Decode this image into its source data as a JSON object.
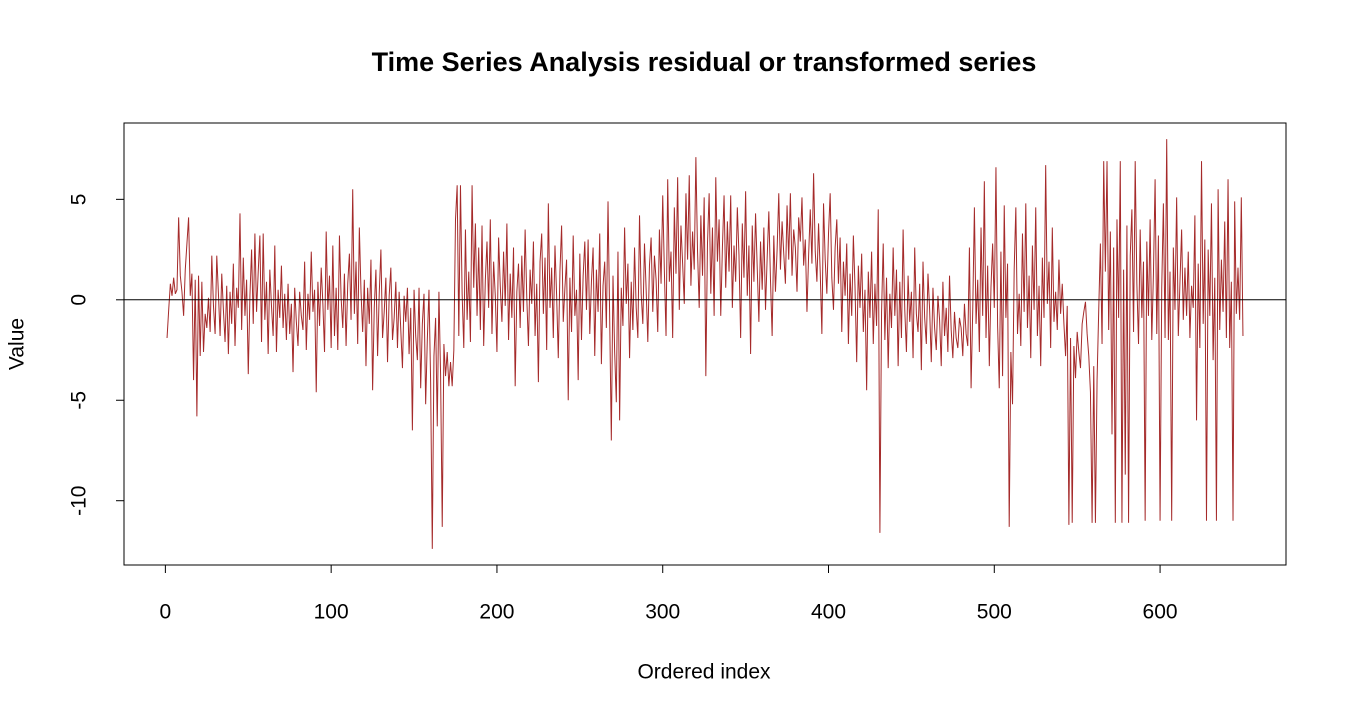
{
  "chart_data": {
    "type": "line",
    "title": "Time Series Analysis residual or transformed series",
    "x_label": "Ordered index",
    "y_label": "Value",
    "color": "#a52a2a",
    "hline": 0,
    "xlim": [
      -24.96,
      675.96
    ],
    "ylim": [
      -13.2,
      8.8
    ],
    "xticks": [
      0,
      100,
      200,
      300,
      400,
      500,
      600
    ],
    "yticks": [
      -10,
      -5,
      0,
      5
    ],
    "values": [
      -1.9,
      -0.5,
      0.8,
      0.2,
      1.1,
      0.3,
      0.5,
      4.1,
      1.2,
      0.4,
      -0.8,
      1.5,
      2.8,
      4.1,
      0.2,
      1.3,
      -4.0,
      1.0,
      -5.8,
      1.2,
      -2.8,
      0.9,
      -2.6,
      -0.7,
      -1.4,
      0.1,
      -1.6,
      2.2,
      -0.3,
      -1.7,
      2.2,
      0.3,
      -1.8,
      1.3,
      -0.5,
      -2.1,
      0.7,
      -2.7,
      0.4,
      -1.2,
      1.8,
      -2.3,
      0.6,
      -0.4,
      4.3,
      -1.5,
      2.1,
      -0.8,
      1.0,
      -3.7,
      0.2,
      2.5,
      -1.2,
      3.3,
      -0.6,
      1.4,
      3.2,
      -2.1,
      3.3,
      -1.0,
      0.9,
      -2.7,
      1.5,
      -0.3,
      -1.8,
      2.7,
      -2.6,
      0.5,
      -0.9,
      1.7,
      -1.4,
      0.3,
      -2.0,
      0.8,
      -1.7,
      -0.2,
      -3.6,
      0.6,
      -1.1,
      -2.3,
      0.4,
      -0.8,
      -1.5,
      1.9,
      -2.5,
      0.3,
      -1.0,
      2.4,
      -0.6,
      0.5,
      -4.6,
      0.9,
      -1.3,
      1.6,
      -0.2,
      -2.6,
      3.4,
      -0.5,
      1.2,
      -2.4,
      2.7,
      -1.8,
      0.6,
      -2.5,
      3.2,
      0.1,
      -1.4,
      1.3,
      -2.3,
      0.8,
      2.3,
      -1.0,
      5.5,
      -0.7,
      1.9,
      -2.2,
      3.6,
      0.4,
      -1.6,
      1.0,
      -3.3,
      0.6,
      -1.2,
      2.0,
      -4.5,
      -0.4,
      1.5,
      -2.8,
      0.3,
      2.5,
      -1.9,
      -0.6,
      1.1,
      -3.1,
      0.2,
      1.6,
      -2.0,
      -0.9,
      0.9,
      -2.4,
      0.4,
      -1.5,
      -3.4,
      0.2,
      -1.1,
      0.6,
      -2.7,
      -0.4,
      -6.5,
      0.5,
      -1.8,
      -3.0,
      0.6,
      -4.4,
      -1.2,
      0.3,
      -5.2,
      -2.0,
      0.5,
      -4.1,
      -12.4,
      -2.8,
      -0.9,
      -6.3,
      0.4,
      -3.7,
      -11.3,
      -2.2,
      -3.8,
      -2.6,
      -4.3,
      -3.1,
      -4.3,
      -2.5,
      4.0,
      5.7,
      -1.8,
      5.7,
      0.3,
      -2.4,
      3.5,
      -1.0,
      1.4,
      -2.1,
      5.7,
      0.6,
      3.8,
      -0.8,
      2.6,
      -1.5,
      3.7,
      -2.3,
      1.0,
      2.9,
      -0.4,
      4.0,
      -1.7,
      1.9,
      0.2,
      -2.6,
      3.1,
      0.7,
      -1.1,
      2.4,
      -0.3,
      3.8,
      -2.0,
      1.3,
      -0.9,
      2.6,
      -4.3,
      0.4,
      1.8,
      -1.4,
      2.2,
      -0.6,
      3.5,
      0.1,
      -2.3,
      1.5,
      -0.2,
      2.9,
      -1.8,
      0.8,
      -4.1,
      1.9,
      3.3,
      -0.7,
      2.1,
      -2.5,
      4.8,
      -0.4,
      1.6,
      -1.9,
      2.7,
      0.2,
      -2.9,
      1.4,
      3.7,
      -1.1,
      0.6,
      2.0,
      -5.0,
      1.1,
      -1.6,
      3.2,
      -0.8,
      0.5,
      -4.0,
      2.3,
      -2.0,
      1.2,
      2.9,
      -0.5,
      3.0,
      -1.7,
      0.9,
      2.6,
      -2.8,
      1.5,
      -0.6,
      3.3,
      -3.2,
      0.7,
      1.9,
      -1.4,
      4.9,
      -0.9,
      -7.0,
      1.2,
      -2.6,
      -5.1,
      2.4,
      -6.0,
      0.6,
      -1.3,
      3.6,
      -0.2,
      1.8,
      -2.9,
      0.9,
      -1.5,
      2.6,
      -0.4,
      -1.9,
      4.2,
      0.3,
      -1.2,
      2.8,
      0.5,
      -2.1,
      1.7,
      3.1,
      -0.6,
      2.2,
      1.0,
      -1.6,
      3.5,
      0.8,
      5.2,
      1.4,
      -1.8,
      6.0,
      0.9,
      2.4,
      -1.9,
      4.6,
      1.3,
      6.1,
      -0.5,
      3.7,
      1.8,
      -0.2,
      5.3,
      2.0,
      6.2,
      0.7,
      3.4,
      1.5,
      7.1,
      2.4,
      -0.4,
      4.2,
      1.2,
      5.1,
      -3.8,
      2.8,
      5.3,
      0.3,
      3.6,
      -0.8,
      6.1,
      1.9,
      4.0,
      -0.8,
      2.6,
      5.2,
      0.6,
      3.9,
      1.4,
      5.2,
      -0.4,
      2.7,
      0.9,
      4.6,
      2.2,
      -1.9,
      3.8,
      1.1,
      5.4,
      0.2,
      2.7,
      -2.7,
      3.7,
      0.9,
      4.3,
      1.6,
      -1.1,
      2.9,
      0.5,
      3.6,
      -0.5,
      2.1,
      4.4,
      1.0,
      -1.8,
      3.2,
      0.4,
      2.5,
      5.3,
      1.5,
      3.9,
      2.3,
      0.8,
      4.7,
      2.0,
      5.3,
      1.2,
      3.5,
      2.6,
      0.4,
      4.1,
      2.9,
      5.1,
      1.7,
      3.0,
      -0.6,
      2.2,
      4.5,
      1.8,
      6.3,
      2.4,
      0.9,
      3.8,
      1.4,
      -1.7,
      4.8,
      2.0,
      0.3,
      3.3,
      5.3,
      1.1,
      -0.5,
      2.6,
      4.0,
      0.8,
      3.1,
      -1.6,
      1.9,
      0.2,
      2.8,
      -2.2,
      1.3,
      -0.8,
      3.2,
      0.6,
      -3.1,
      1.7,
      -0.4,
      2.3,
      -1.6,
      0.5,
      -4.5,
      1.4,
      -0.9,
      2.4,
      -2.2,
      0.8,
      -1.3,
      4.5,
      -11.6,
      -0.6,
      2.8,
      -2.0,
      1.1,
      -3.4,
      0.3,
      -1.4,
      2.6,
      -0.8,
      1.5,
      -3.3,
      0.9,
      -1.9,
      3.5,
      -0.5,
      -2.6,
      1.2,
      -1.1,
      0.4,
      -2.9,
      2.6,
      -0.7,
      -1.6,
      0.8,
      -3.5,
      1.9,
      -0.9,
      -2.2,
      1.3,
      -0.5,
      -3.1,
      0.6,
      -1.4,
      -2.5,
      0.2,
      -1.0,
      -3.3,
      0.9,
      -1.8,
      -0.4,
      -2.6,
      1.2,
      -1.5,
      -2.9,
      -0.6,
      -1.9,
      -2.4,
      -0.9,
      -1.4,
      -2.8,
      -0.2,
      -1.7,
      -2.3,
      2.6,
      -4.4,
      -0.5,
      4.6,
      -1.2,
      1.0,
      -2.6,
      3.6,
      -0.8,
      5.9,
      -1.9,
      1.7,
      -3.3,
      0.6,
      2.8,
      -0.4,
      6.6,
      -1.3,
      -4.4,
      2.4,
      -3.8,
      4.7,
      -0.9,
      1.8,
      -11.3,
      -2.6,
      -5.2,
      1.5,
      4.6,
      -1.7,
      0.3,
      -2.3,
      3.3,
      -0.6,
      4.8,
      -1.4,
      1.2,
      -2.9,
      2.7,
      -0.5,
      4.6,
      -1.8,
      0.7,
      -3.3,
      2.1,
      -0.9,
      6.7,
      -0.2,
      1.9,
      -2.4,
      3.6,
      -1.1,
      0.4,
      -1.5,
      2.0,
      -0.7,
      0.8,
      -1.2,
      -2.8,
      -0.3,
      -11.2,
      -1.9,
      -11.1,
      -2.3,
      -3.9,
      -1.6,
      -2.6,
      -3.4,
      -1.2,
      -0.6,
      -0.1,
      -1.7,
      -2.8,
      -4.6,
      -11.1,
      -3.3,
      -11.1,
      -4.0,
      -0.5,
      2.8,
      -2.2,
      6.9,
      1.4,
      6.9,
      -1.5,
      3.4,
      -6.7,
      2.6,
      -11.1,
      4.0,
      -0.9,
      6.9,
      -11.1,
      1.5,
      -8.7,
      3.7,
      -11.1,
      2.2,
      4.5,
      -1.6,
      6.9,
      0.8,
      -2.2,
      3.5,
      -0.9,
      1.9,
      -11.0,
      2.9,
      -0.8,
      4.0,
      -2.0,
      1.3,
      6.0,
      -1.7,
      3.2,
      -11.0,
      0.6,
      4.8,
      -1.9,
      8.0,
      -2.0,
      1.4,
      -11.0,
      2.6,
      -0.5,
      5.1,
      -1.8,
      0.9,
      3.5,
      -1.0,
      1.6,
      -0.8,
      2.4,
      -1.9,
      0.7,
      -0.4,
      4.2,
      -6.0,
      1.8,
      -2.4,
      6.9,
      -1.2,
      3.0,
      -11.0,
      2.5,
      -0.8,
      4.8,
      -3.0,
      1.1,
      -11.0,
      5.5,
      -1.5,
      2.0,
      -0.6,
      3.9,
      -1.9,
      6.0,
      -2.4,
      0.9,
      -11.0,
      4.9,
      -0.7,
      1.6,
      -1.0,
      5.1,
      -1.8
    ]
  }
}
